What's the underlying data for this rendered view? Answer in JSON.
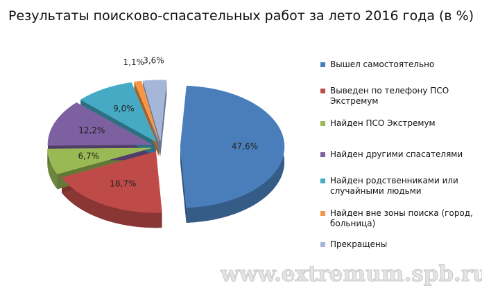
{
  "chart_data": {
    "type": "pie",
    "title": "Результаты поисково-спасательных работ за лето 2016 года (в %)",
    "categories": [
      "Вышел самостоятельно",
      "Выведен по телефону ПСО Экстремум",
      "Найден ПСО Экстремум",
      "Найден другими спасателями",
      "Найден родственниками или случайными людьми",
      "Найден вне зоны поиска (город, больница)",
      "Прекращены"
    ],
    "values": [
      47.6,
      18.7,
      6.7,
      12.2,
      9.0,
      1.1,
      3.6
    ],
    "value_labels": [
      "47,6%",
      "18,7%",
      "6,7%",
      "12,2%",
      "9,0%",
      "1,1%",
      "3,6%"
    ],
    "colors": [
      "#4a7ebb",
      "#be4b48",
      "#98b954",
      "#7d60a0",
      "#46aac5",
      "#f79646",
      "#a5b6d9"
    ],
    "legend": "right",
    "watermark": "www.extremum.spb.ru"
  }
}
